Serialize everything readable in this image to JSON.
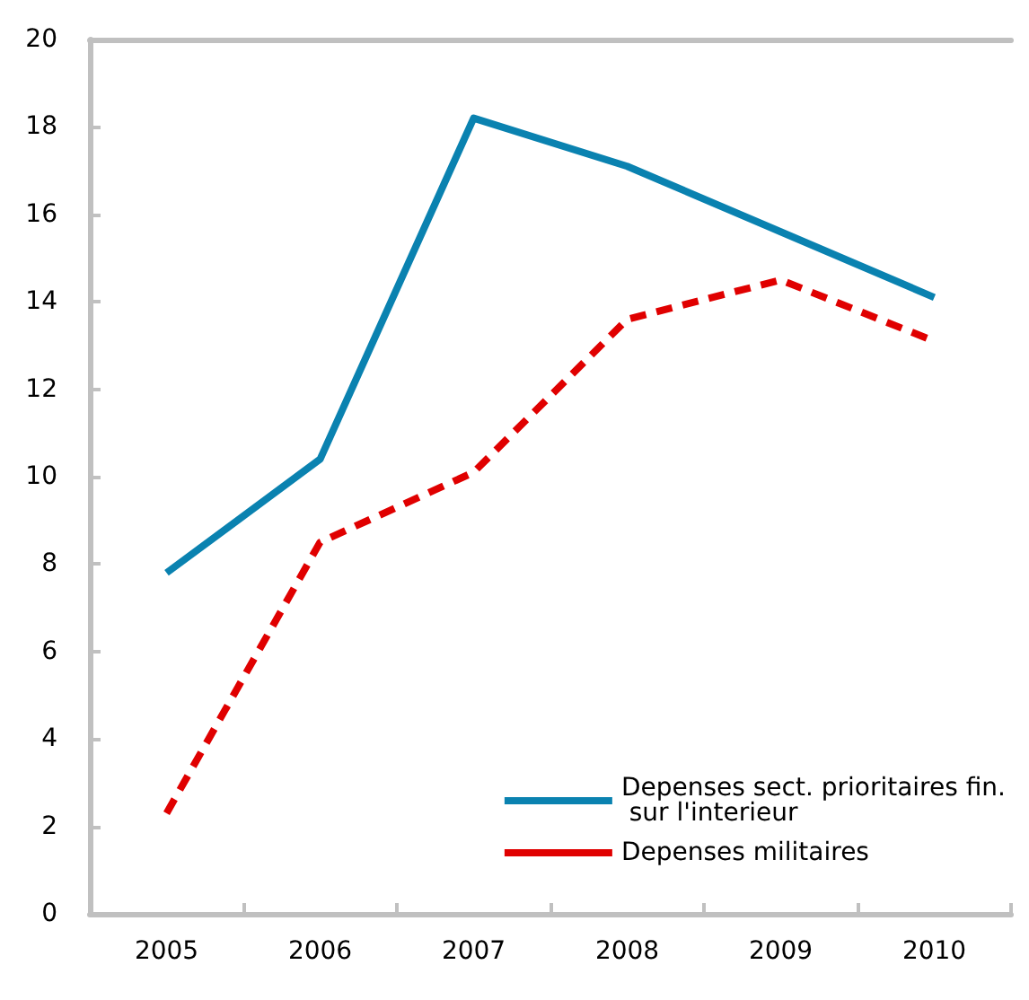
{
  "chart_data": {
    "type": "line",
    "categories": [
      "2005",
      "2006",
      "2007",
      "2008",
      "2009",
      "2010"
    ],
    "series": [
      {
        "name": "Depenses sect. prioritaires fin. sur l'interieur",
        "color": "#0a82b0",
        "line_style": "solid",
        "values": [
          7.8,
          10.4,
          18.2,
          17.1,
          15.6,
          14.1
        ]
      },
      {
        "name": "Depenses militaires",
        "color": "#e00000",
        "line_style": "dashed",
        "values": [
          2.3,
          8.5,
          10.1,
          13.6,
          14.5,
          13.1
        ]
      }
    ],
    "ylim": [
      0,
      20
    ],
    "yticks": [
      0,
      2,
      4,
      6,
      8,
      10,
      12,
      14,
      16,
      18,
      20
    ],
    "grid": false,
    "legend": "bottom right",
    "marker": "none"
  }
}
